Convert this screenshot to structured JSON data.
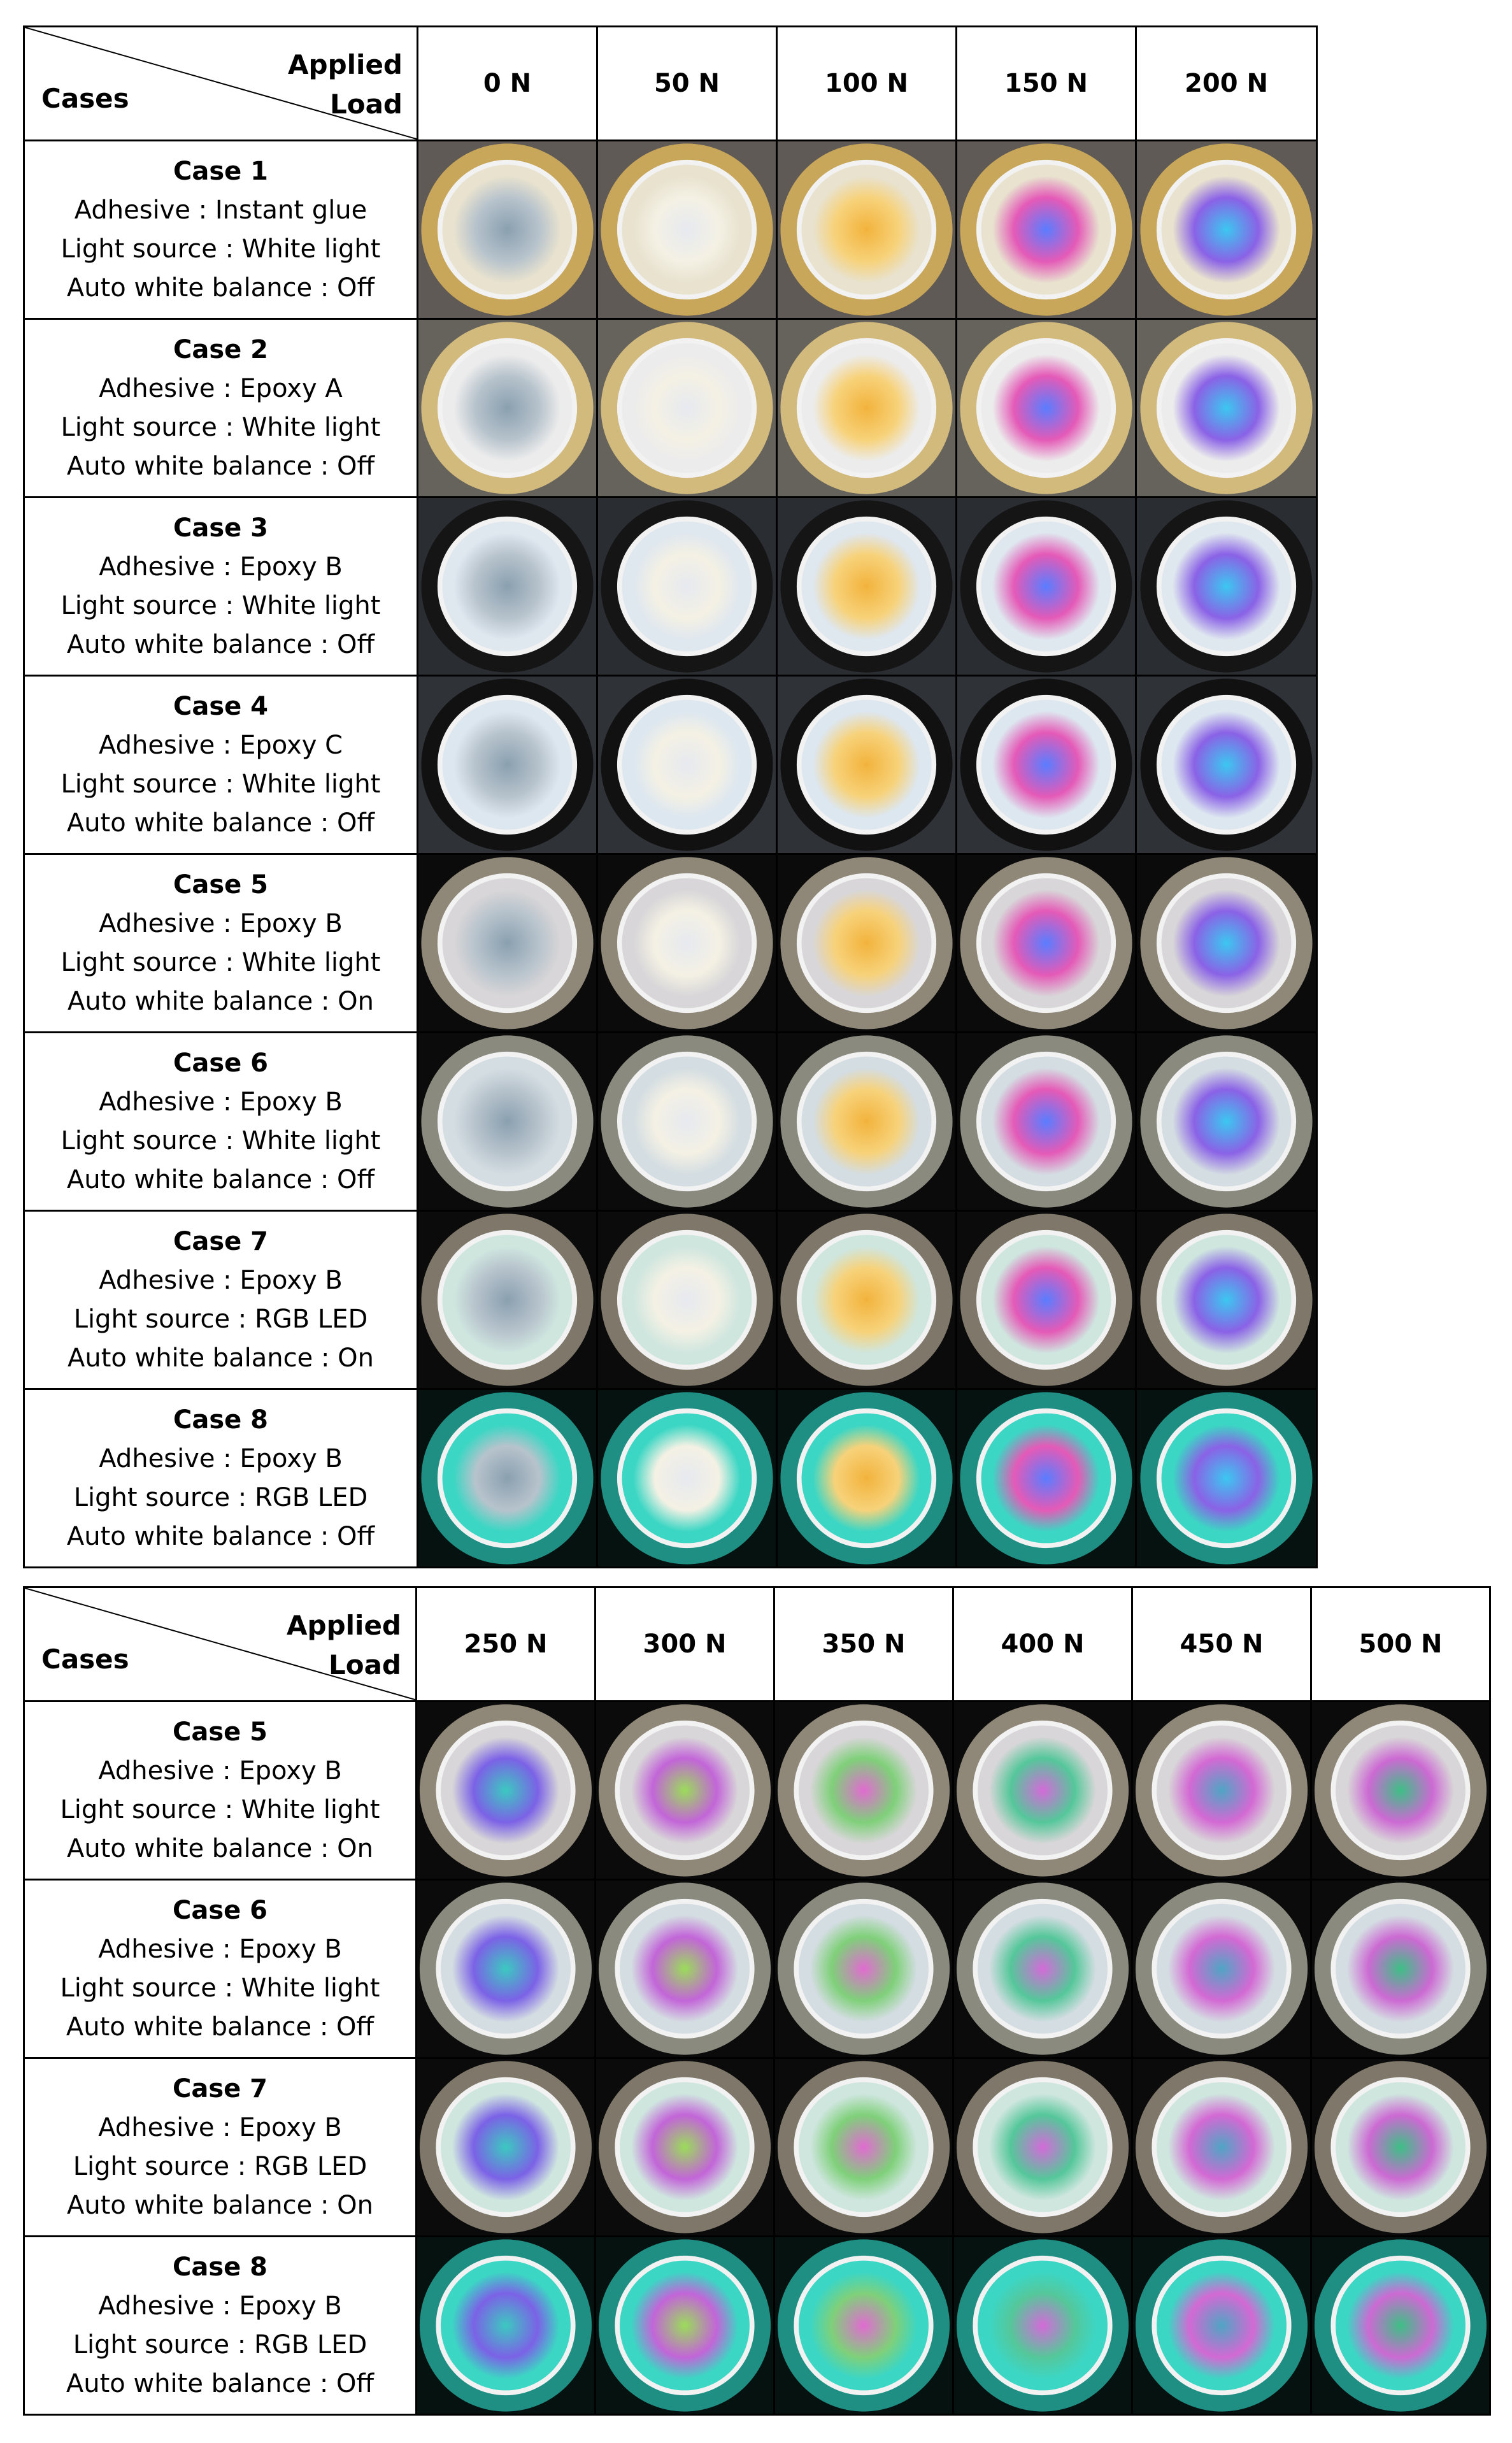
{
  "header": {
    "applied": "Applied",
    "load": "Load",
    "cases": "Cases"
  },
  "table1": {
    "loads": [
      "0 N",
      "50 N",
      "100 N",
      "150 N",
      "200 N"
    ],
    "rows": [
      {
        "title": "Case 1",
        "adhesive": "Adhesive : Instant glue",
        "light": "Light source : White light",
        "awb": "Auto white balance : Off"
      },
      {
        "title": "Case 2",
        "adhesive": "Adhesive : Epoxy A",
        "light": "Light source : White light",
        "awb": "Auto white balance : Off"
      },
      {
        "title": "Case 3",
        "adhesive": "Adhesive : Epoxy B",
        "light": "Light source : White light",
        "awb": "Auto white balance : Off"
      },
      {
        "title": "Case 4",
        "adhesive": "Adhesive : Epoxy C",
        "light": "Light source : White light",
        "awb": "Auto white balance : Off"
      },
      {
        "title": "Case 5",
        "adhesive": "Adhesive : Epoxy B",
        "light": "Light source : White light",
        "awb": "Auto white balance : On"
      },
      {
        "title": "Case 6",
        "adhesive": "Adhesive : Epoxy B",
        "light": "Light source : White light",
        "awb": "Auto white balance : Off"
      },
      {
        "title": "Case 7",
        "adhesive": "Adhesive : Epoxy B",
        "light": "Light source : RGB LED",
        "awb": "Auto white balance : On"
      },
      {
        "title": "Case 8",
        "adhesive": "Adhesive : Epoxy B",
        "light": "Light source : RGB LED",
        "awb": "Auto white balance : Off"
      }
    ]
  },
  "table2": {
    "loads": [
      "250 N",
      "300 N",
      "350 N",
      "400 N",
      "450 N",
      "500 N"
    ],
    "rows": [
      {
        "title": "Case 5",
        "adhesive": "Adhesive : Epoxy B",
        "light": "Light source : White light",
        "awb": "Auto white balance : On"
      },
      {
        "title": "Case 6",
        "adhesive": "Adhesive : Epoxy B",
        "light": "Light source : White light",
        "awb": "Auto white balance : Off"
      },
      {
        "title": "Case 7",
        "adhesive": "Adhesive : Epoxy B",
        "light": "Light source : RGB LED",
        "awb": "Auto white balance : On"
      },
      {
        "title": "Case 8",
        "adhesive": "Adhesive : Epoxy B",
        "light": "Light source : RGB LED",
        "awb": "Auto white balance : Off"
      }
    ]
  },
  "colors": {
    "background_light": "#6e6e6e",
    "background_dark": "#0a0a0a",
    "rim_gold": "#c8a75a",
    "rim_dark": "#1c1c1c",
    "rim_grey": "#b9b2a6",
    "rim_teal": "#2aa999"
  },
  "photo_icon": "photoelastic-disc-photo"
}
